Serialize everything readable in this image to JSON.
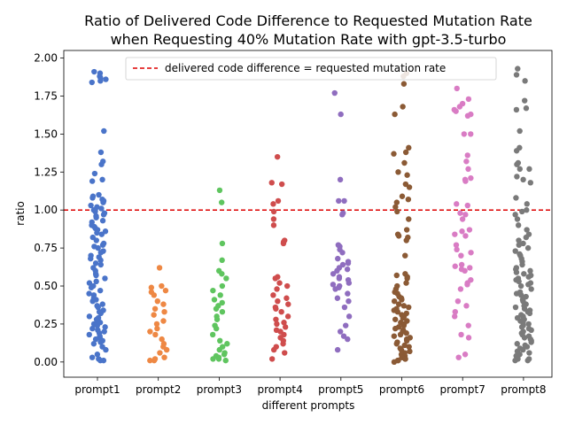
{
  "chart_data": {
    "type": "scatter",
    "title_line1": "Ratio of Delivered Code Difference to Requested Mutation Rate",
    "title_line2": "when Requesting 40% Mutation Rate with gpt-3.5-turbo",
    "xlabel": "different prompts",
    "ylabel": "ratio",
    "ylim": [
      -0.1,
      2.05
    ],
    "yticks": [
      "0.00",
      "0.25",
      "0.50",
      "0.75",
      "1.00",
      "1.25",
      "1.50",
      "1.75",
      "2.00"
    ],
    "categories": [
      "prompt1",
      "prompt2",
      "prompt3",
      "prompt4",
      "prompt5",
      "prompt6",
      "prompt7",
      "prompt8"
    ],
    "reference_line": {
      "y": 1.0,
      "label": "delivered code difference = requested mutation rate",
      "color": "#dd0000"
    },
    "legend_position": "top-center",
    "colors": [
      "#4a74c9",
      "#ee8844",
      "#5fc55f",
      "#cf4d4d",
      "#8f6dbf",
      "#8b5a35",
      "#d97cc4",
      "#7a7a7a"
    ],
    "series": [
      {
        "name": "prompt1",
        "values": [
          1.9,
          1.91,
          1.88,
          1.86,
          1.87,
          1.85,
          1.84,
          1.52,
          1.38,
          1.32,
          1.3,
          1.24,
          1.2,
          1.19,
          1.1,
          1.09,
          1.08,
          1.07,
          1.06,
          1.05,
          1.03,
          1.02,
          1.01,
          1.0,
          1.0,
          0.99,
          0.98,
          0.97,
          0.96,
          0.95,
          0.93,
          0.92,
          0.9,
          0.89,
          0.88,
          0.87,
          0.86,
          0.85,
          0.84,
          0.82,
          0.8,
          0.78,
          0.77,
          0.76,
          0.75,
          0.73,
          0.72,
          0.7,
          0.69,
          0.68,
          0.67,
          0.65,
          0.64,
          0.62,
          0.6,
          0.58,
          0.57,
          0.55,
          0.53,
          0.52,
          0.5,
          0.49,
          0.47,
          0.45,
          0.44,
          0.42,
          0.41,
          0.4,
          0.38,
          0.37,
          0.36,
          0.34,
          0.33,
          0.32,
          0.3,
          0.29,
          0.28,
          0.27,
          0.26,
          0.25,
          0.24,
          0.23,
          0.22,
          0.21,
          0.2,
          0.19,
          0.18,
          0.17,
          0.16,
          0.15,
          0.14,
          0.13,
          0.12,
          0.1,
          0.08,
          0.05,
          0.03,
          0.02,
          0.01,
          0.01
        ]
      },
      {
        "name": "prompt2",
        "values": [
          0.62,
          0.5,
          0.49,
          0.47,
          0.46,
          0.44,
          0.4,
          0.38,
          0.35,
          0.33,
          0.31,
          0.27,
          0.25,
          0.22,
          0.2,
          0.18,
          0.15,
          0.12,
          0.1,
          0.08,
          0.06,
          0.03,
          0.02,
          0.01,
          0.01
        ]
      },
      {
        "name": "prompt3",
        "values": [
          1.13,
          1.05,
          0.78,
          0.67,
          0.6,
          0.58,
          0.55,
          0.5,
          0.47,
          0.44,
          0.41,
          0.39,
          0.37,
          0.35,
          0.33,
          0.3,
          0.28,
          0.24,
          0.22,
          0.18,
          0.14,
          0.12,
          0.1,
          0.08,
          0.06,
          0.05,
          0.04,
          0.03,
          0.02,
          0.02,
          0.01
        ]
      },
      {
        "name": "prompt4",
        "values": [
          1.35,
          1.18,
          1.17,
          1.06,
          1.04,
          0.99,
          0.94,
          0.9,
          0.8,
          0.79,
          0.78,
          0.56,
          0.55,
          0.52,
          0.5,
          0.48,
          0.44,
          0.42,
          0.4,
          0.38,
          0.36,
          0.35,
          0.33,
          0.3,
          0.28,
          0.26,
          0.25,
          0.23,
          0.21,
          0.2,
          0.18,
          0.16,
          0.14,
          0.12,
          0.1,
          0.08,
          0.06,
          0.02
        ]
      },
      {
        "name": "prompt5",
        "values": [
          1.77,
          1.63,
          1.2,
          1.06,
          1.06,
          0.98,
          0.97,
          0.77,
          0.76,
          0.74,
          0.72,
          0.68,
          0.66,
          0.65,
          0.64,
          0.62,
          0.61,
          0.6,
          0.58,
          0.56,
          0.55,
          0.54,
          0.52,
          0.51,
          0.5,
          0.49,
          0.48,
          0.45,
          0.42,
          0.4,
          0.36,
          0.3,
          0.24,
          0.2,
          0.17,
          0.15,
          0.08
        ]
      },
      {
        "name": "prompt6",
        "values": [
          1.9,
          1.88,
          1.83,
          1.68,
          1.63,
          1.41,
          1.38,
          1.37,
          1.31,
          1.25,
          1.23,
          1.17,
          1.15,
          1.09,
          1.07,
          1.05,
          1.02,
          0.99,
          0.94,
          0.87,
          0.84,
          0.83,
          0.82,
          0.8,
          0.7,
          0.58,
          0.57,
          0.56,
          0.55,
          0.52,
          0.5,
          0.48,
          0.46,
          0.45,
          0.43,
          0.42,
          0.41,
          0.4,
          0.38,
          0.37,
          0.36,
          0.35,
          0.34,
          0.33,
          0.32,
          0.31,
          0.3,
          0.29,
          0.28,
          0.27,
          0.26,
          0.25,
          0.24,
          0.23,
          0.22,
          0.21,
          0.2,
          0.19,
          0.18,
          0.17,
          0.16,
          0.15,
          0.14,
          0.13,
          0.12,
          0.11,
          0.1,
          0.09,
          0.08,
          0.07,
          0.06,
          0.05,
          0.04,
          0.03,
          0.03,
          0.02,
          0.02,
          0.01,
          0.01,
          0.0
        ]
      },
      {
        "name": "prompt7",
        "values": [
          1.8,
          1.73,
          1.7,
          1.68,
          1.66,
          1.65,
          1.63,
          1.62,
          1.5,
          1.5,
          1.36,
          1.32,
          1.27,
          1.21,
          1.2,
          1.19,
          1.04,
          1.03,
          0.98,
          0.97,
          0.94,
          0.87,
          0.86,
          0.84,
          0.83,
          0.77,
          0.74,
          0.72,
          0.7,
          0.64,
          0.63,
          0.62,
          0.61,
          0.6,
          0.54,
          0.52,
          0.51,
          0.48,
          0.4,
          0.37,
          0.33,
          0.3,
          0.24,
          0.18,
          0.16,
          0.05,
          0.03
        ]
      },
      {
        "name": "prompt8",
        "values": [
          1.93,
          1.89,
          1.85,
          1.72,
          1.67,
          1.66,
          1.52,
          1.41,
          1.39,
          1.31,
          1.3,
          1.27,
          1.27,
          1.22,
          1.2,
          1.18,
          1.08,
          1.04,
          1.0,
          0.99,
          0.97,
          0.94,
          0.9,
          0.87,
          0.84,
          0.82,
          0.8,
          0.78,
          0.77,
          0.75,
          0.73,
          0.71,
          0.7,
          0.68,
          0.66,
          0.64,
          0.62,
          0.61,
          0.6,
          0.59,
          0.58,
          0.57,
          0.56,
          0.55,
          0.54,
          0.53,
          0.52,
          0.51,
          0.5,
          0.48,
          0.46,
          0.45,
          0.44,
          0.43,
          0.42,
          0.41,
          0.4,
          0.38,
          0.37,
          0.36,
          0.35,
          0.34,
          0.33,
          0.32,
          0.31,
          0.3,
          0.29,
          0.28,
          0.27,
          0.26,
          0.25,
          0.24,
          0.23,
          0.22,
          0.21,
          0.2,
          0.19,
          0.18,
          0.17,
          0.16,
          0.15,
          0.14,
          0.13,
          0.12,
          0.11,
          0.1,
          0.09,
          0.08,
          0.07,
          0.06,
          0.05,
          0.04,
          0.03,
          0.02,
          0.02,
          0.01,
          0.01
        ]
      }
    ]
  }
}
